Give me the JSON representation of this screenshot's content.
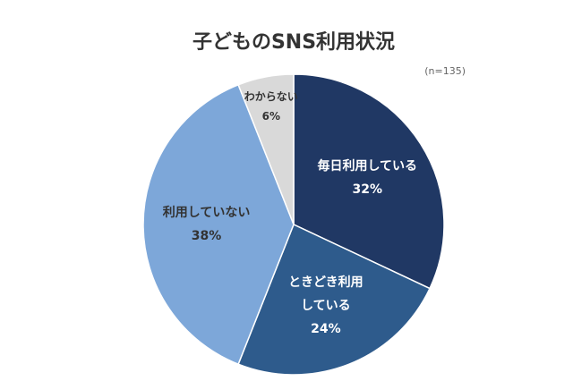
{
  "chart_data": {
    "type": "pie",
    "title": "子どものSNS利用状況",
    "subtitle": "(n=135)",
    "categories": [
      "毎日利用している",
      "ときどき利用している",
      "利用していない",
      "わからない"
    ],
    "values": [
      32,
      24,
      38,
      6
    ],
    "value_labels": [
      "32%",
      "24%",
      "38%",
      "6%"
    ],
    "colors": [
      "#203864",
      "#2e5b8c",
      "#7da7d9",
      "#d9d9d9"
    ]
  }
}
